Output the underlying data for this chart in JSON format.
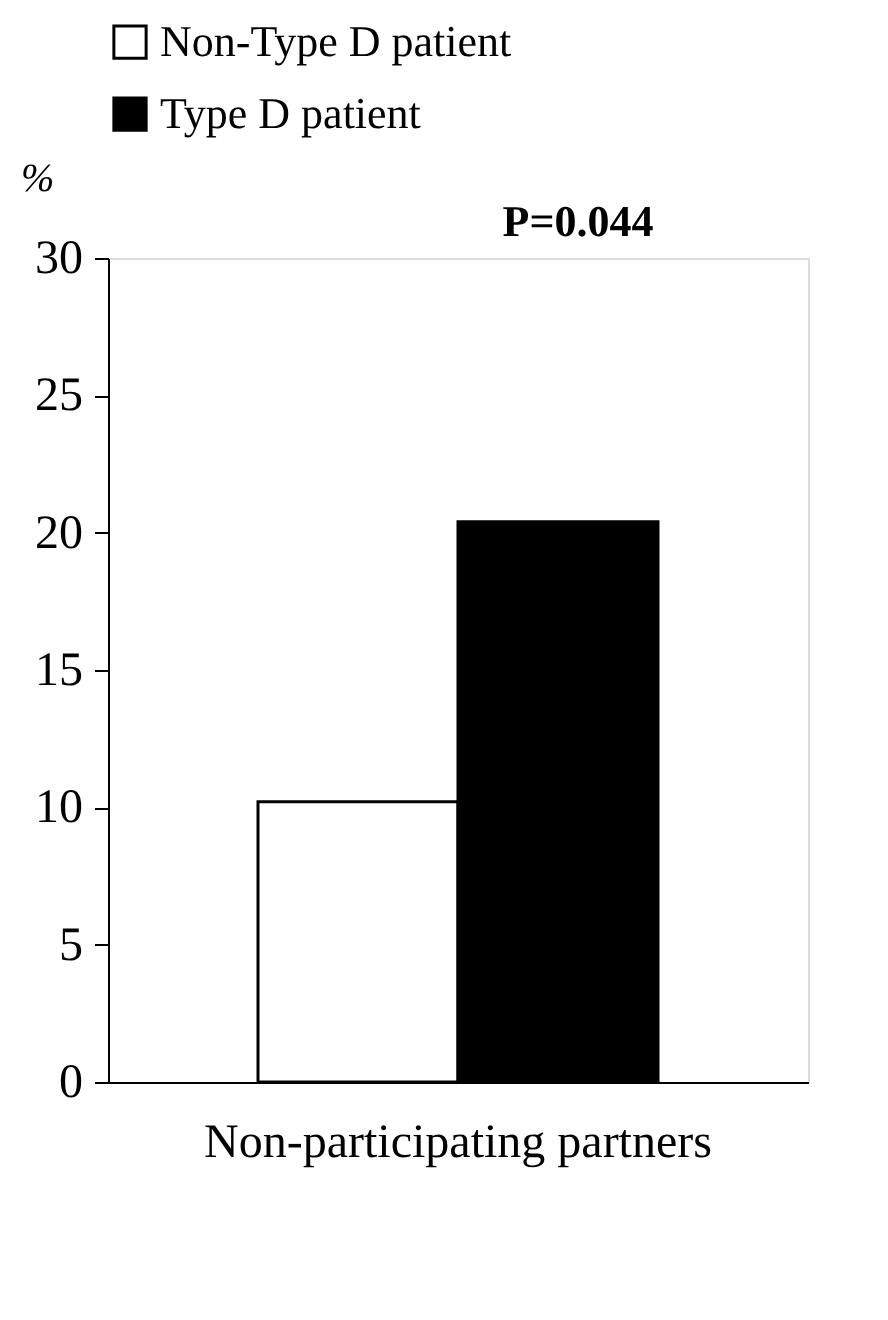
{
  "chart_data": {
    "type": "bar",
    "ylabel": "%",
    "categories": [
      "Non-participating partners"
    ],
    "series": [
      {
        "name": "Non-Type D patient",
        "color": "#ffffff",
        "values": [
          10.2
        ]
      },
      {
        "name": "Type D patient",
        "color": "#000000",
        "values": [
          20.4
        ]
      }
    ],
    "ylim": [
      0,
      30
    ],
    "yticks": [
      0,
      5,
      10,
      15,
      20,
      25,
      30
    ],
    "grid": false,
    "legend": "top left",
    "annotations": [
      "P=0.044"
    ]
  }
}
